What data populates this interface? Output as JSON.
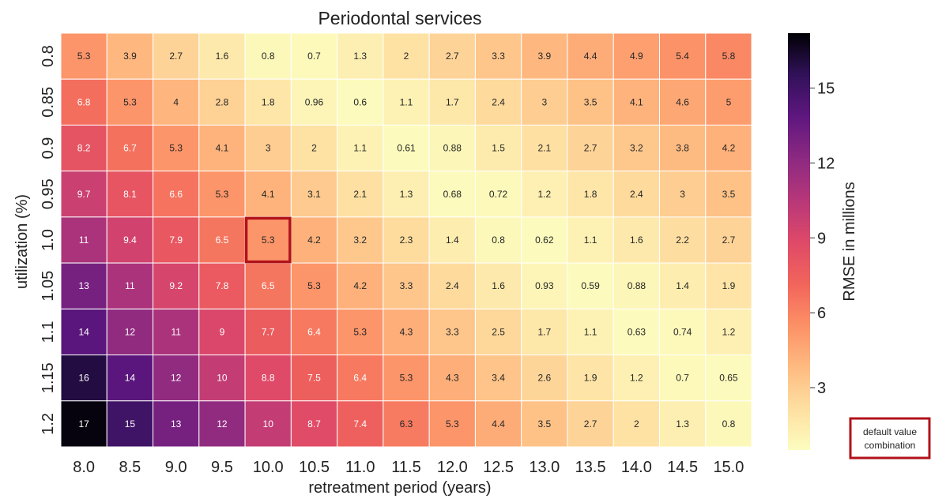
{
  "chart_data": {
    "type": "heatmap",
    "title": "Periodontal services",
    "xlabel": "retreatment period (years)",
    "ylabel": "utilization (%)",
    "x": [
      "8.0",
      "8.5",
      "9.0",
      "9.5",
      "10.0",
      "10.5",
      "11.0",
      "11.5",
      "12.0",
      "12.5",
      "13.0",
      "13.5",
      "14.0",
      "14.5",
      "15.0"
    ],
    "y": [
      "0.8",
      "0.85",
      "0.9",
      "0.95",
      "1.0",
      "1.05",
      "1.1",
      "1.15",
      "1.2"
    ],
    "values": [
      [
        "5.3",
        "3.9",
        "2.7",
        "1.6",
        "0.8",
        "0.7",
        "1.3",
        "2",
        "2.7",
        "3.3",
        "3.9",
        "4.4",
        "4.9",
        "5.4",
        "5.8"
      ],
      [
        "6.8",
        "5.3",
        "4",
        "2.8",
        "1.8",
        "0.96",
        "0.6",
        "1.1",
        "1.7",
        "2.4",
        "3",
        "3.5",
        "4.1",
        "4.6",
        "5"
      ],
      [
        "8.2",
        "6.7",
        "5.3",
        "4.1",
        "3",
        "2",
        "1.1",
        "0.61",
        "0.88",
        "1.5",
        "2.1",
        "2.7",
        "3.2",
        "3.8",
        "4.2"
      ],
      [
        "9.7",
        "8.1",
        "6.6",
        "5.3",
        "4.1",
        "3.1",
        "2.1",
        "1.3",
        "0.68",
        "0.72",
        "1.2",
        "1.8",
        "2.4",
        "3",
        "3.5"
      ],
      [
        "11",
        "9.4",
        "7.9",
        "6.5",
        "5.3",
        "4.2",
        "3.2",
        "2.3",
        "1.4",
        "0.8",
        "0.62",
        "1.1",
        "1.6",
        "2.2",
        "2.7"
      ],
      [
        "13",
        "11",
        "9.2",
        "7.8",
        "6.5",
        "5.3",
        "4.2",
        "3.3",
        "2.4",
        "1.6",
        "0.93",
        "0.59",
        "0.88",
        "1.4",
        "1.9"
      ],
      [
        "14",
        "12",
        "11",
        "9",
        "7.7",
        "6.4",
        "5.3",
        "4.3",
        "3.3",
        "2.5",
        "1.7",
        "1.1",
        "0.63",
        "0.74",
        "1.2"
      ],
      [
        "16",
        "14",
        "12",
        "10",
        "8.8",
        "7.5",
        "6.4",
        "5.3",
        "4.3",
        "3.4",
        "2.6",
        "1.9",
        "1.2",
        "0.7",
        "0.65"
      ],
      [
        "17",
        "15",
        "13",
        "12",
        "10",
        "8.7",
        "7.4",
        "6.3",
        "5.3",
        "4.4",
        "3.5",
        "2.7",
        "2",
        "1.3",
        "0.8"
      ]
    ],
    "colormap": "magma_r",
    "colorbar": {
      "label": "RMSE in millions",
      "range": [
        0.5,
        17.2
      ],
      "ticks": [
        "3",
        "6",
        "9",
        "12",
        "15"
      ]
    },
    "highlight": {
      "x": "10.0",
      "y": "1.0",
      "color": "#b2121a"
    },
    "legend": {
      "label": "default value combination",
      "placement": "bottom-right"
    }
  }
}
